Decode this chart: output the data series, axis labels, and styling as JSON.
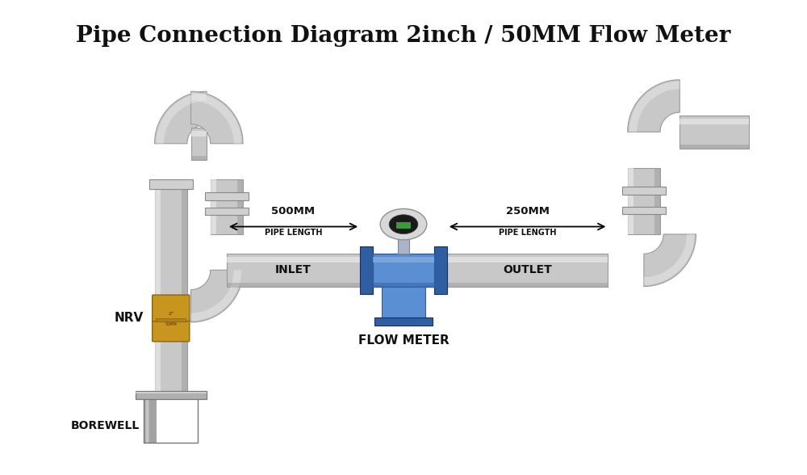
{
  "title": "Pipe Connection Diagram 2inch / 50MM Flow Meter",
  "title_fontsize": 20,
  "title_fontweight": "bold",
  "bg_color": "#ffffff",
  "pipe_color": "#c8c8c8",
  "pipe_dark": "#999999",
  "pipe_light": "#e8e8e8",
  "fm_blue": "#5b8fd4",
  "fm_blue_dark": "#2f5fa0",
  "fm_blue_light": "#8ab0e0",
  "brass_color": "#c8961e",
  "brass_dark": "#8a6410",
  "arrow_color": "#cc0000",
  "text_color": "#111111",
  "label_inlet": "INLET",
  "label_outlet": "OUTLET",
  "label_500mm": "500MM",
  "label_250mm": "250MM",
  "label_pipe_length": "PIPE LENGTH",
  "label_flow_meter": "FLOW METER",
  "label_nrv": "NRV",
  "label_borewell": "BOREWELL"
}
